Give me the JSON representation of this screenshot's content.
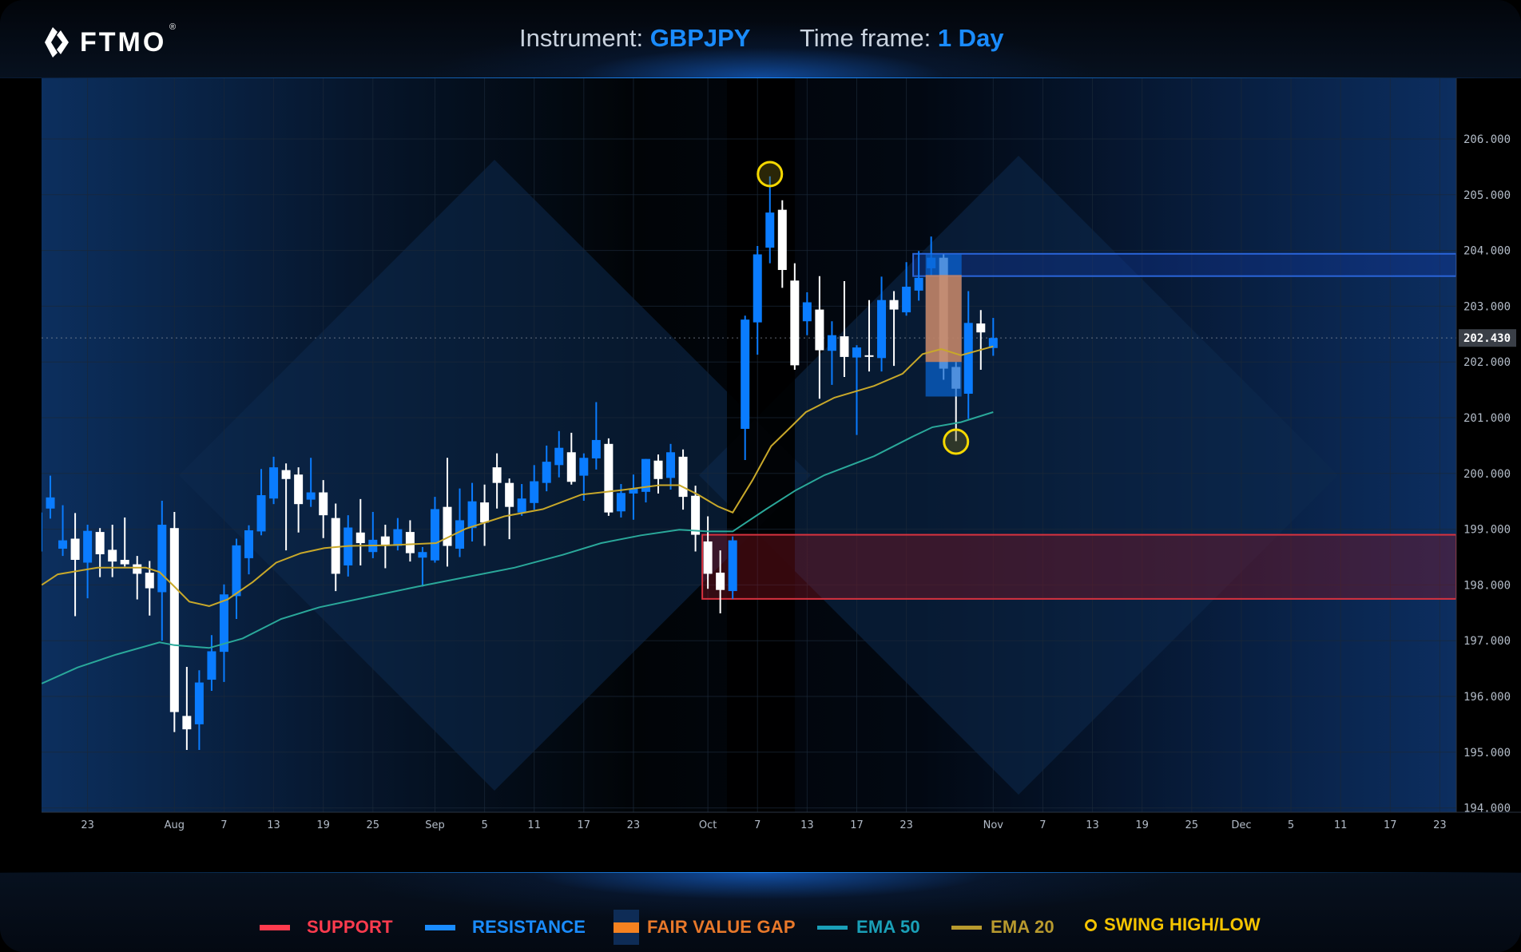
{
  "header": {
    "logo_text": "FTMO",
    "logo_mark": "®",
    "instrument_label": "Instrument:",
    "instrument_value": "GBPJPY",
    "timeframe_label": "Time frame:",
    "timeframe_value": "1 Day"
  },
  "colors": {
    "accent": "#1a8cff",
    "bullish_candle": "#0a7cff",
    "bearish_candle": "#ffffff",
    "support": "#ff3b4e",
    "resistance": "#1a8cff",
    "fair_value_gap": "#f58220",
    "ema50": "#1aa0b8",
    "ema20": "#b89a2e",
    "swing": "#f5c400"
  },
  "legend": [
    {
      "label": "SUPPORT",
      "icon": "red-line-swatch"
    },
    {
      "label": "RESISTANCE",
      "icon": "blue-line-swatch"
    },
    {
      "label": "FAIR VALUE GAP",
      "icon": "orange-block-swatch"
    },
    {
      "label": "EMA 50",
      "icon": "teal-line-swatch"
    },
    {
      "label": "EMA 20",
      "icon": "gold-line-swatch"
    },
    {
      "label": "SWING HIGH/LOW",
      "icon": "yellow-circle-icon"
    }
  ],
  "chart_data": {
    "type": "candlestick",
    "instrument": "GBPJPY",
    "timeframe": "1 Day",
    "ylim": [
      194,
      206
    ],
    "y_ticks": [
      "194.000",
      "195.000",
      "196.000",
      "197.000",
      "198.000",
      "199.000",
      "200.000",
      "201.000",
      "202.000",
      "203.000",
      "204.000",
      "205.000",
      "206.000"
    ],
    "current_price": "202.430",
    "x_ticks": [
      {
        "bar": 4,
        "label": "23"
      },
      {
        "bar": 11,
        "label": "Aug"
      },
      {
        "bar": 15,
        "label": "7"
      },
      {
        "bar": 19,
        "label": "13"
      },
      {
        "bar": 23,
        "label": "19"
      },
      {
        "bar": 27,
        "label": "25"
      },
      {
        "bar": 32,
        "label": "Sep"
      },
      {
        "bar": 36,
        "label": "5"
      },
      {
        "bar": 40,
        "label": "11"
      },
      {
        "bar": 44,
        "label": "17"
      },
      {
        "bar": 48,
        "label": "23"
      },
      {
        "bar": 54,
        "label": "Oct"
      },
      {
        "bar": 58,
        "label": "7"
      },
      {
        "bar": 62,
        "label": "13"
      },
      {
        "bar": 66,
        "label": "17"
      },
      {
        "bar": 70,
        "label": "23"
      },
      {
        "bar": 77,
        "label": "Nov"
      },
      {
        "bar": 81,
        "label": "7"
      },
      {
        "bar": 85,
        "label": "13"
      },
      {
        "bar": 89,
        "label": "19"
      },
      {
        "bar": 93,
        "label": "25"
      },
      {
        "bar": 97,
        "label": "Dec"
      },
      {
        "bar": 101,
        "label": "5"
      },
      {
        "bar": 105,
        "label": "11"
      },
      {
        "bar": 109,
        "label": "17"
      },
      {
        "bar": 113,
        "label": "23"
      }
    ],
    "candle_fields": [
      "open",
      "high",
      "low",
      "close"
    ],
    "candles": [
      [
        198.6,
        199.41,
        198.49,
        199.3
      ],
      [
        199.37,
        199.96,
        199.19,
        199.57
      ],
      [
        198.65,
        199.43,
        198.52,
        198.8
      ],
      [
        198.83,
        199.29,
        197.44,
        198.45
      ],
      [
        198.4,
        199.08,
        197.76,
        198.97
      ],
      [
        198.95,
        199.02,
        198.14,
        198.55
      ],
      [
        198.63,
        199.08,
        198.14,
        198.42
      ],
      [
        198.45,
        199.21,
        198.33,
        198.37
      ],
      [
        198.37,
        198.52,
        197.74,
        198.2
      ],
      [
        198.22,
        198.43,
        197.45,
        197.94
      ],
      [
        197.87,
        199.51,
        197.0,
        199.08
      ],
      [
        199.02,
        199.31,
        195.36,
        195.72
      ],
      [
        195.65,
        196.53,
        195.04,
        195.41
      ],
      [
        195.5,
        196.47,
        195.04,
        196.25
      ],
      [
        196.3,
        197.1,
        196.1,
        196.81
      ],
      [
        196.8,
        198.01,
        196.26,
        197.83
      ],
      [
        197.8,
        198.83,
        197.39,
        198.71
      ],
      [
        198.48,
        199.07,
        198.19,
        198.98
      ],
      [
        198.96,
        200.08,
        198.89,
        199.61
      ],
      [
        199.55,
        200.3,
        199.45,
        200.11
      ],
      [
        200.06,
        200.18,
        198.62,
        199.9
      ],
      [
        199.98,
        200.11,
        198.94,
        199.45
      ],
      [
        199.53,
        200.28,
        199.4,
        199.66
      ],
      [
        199.66,
        199.88,
        198.84,
        199.25
      ],
      [
        199.2,
        199.46,
        197.89,
        198.2
      ],
      [
        198.35,
        199.25,
        198.15,
        199.03
      ],
      [
        198.94,
        199.54,
        198.35,
        198.75
      ],
      [
        198.59,
        199.31,
        198.48,
        198.81
      ],
      [
        198.87,
        199.08,
        198.3,
        198.7
      ],
      [
        198.7,
        199.2,
        198.62,
        199.0
      ],
      [
        198.95,
        199.16,
        198.42,
        198.57
      ],
      [
        198.49,
        198.68,
        197.97,
        198.59
      ],
      [
        198.44,
        199.58,
        198.4,
        199.36
      ],
      [
        199.4,
        200.28,
        198.33,
        198.7
      ],
      [
        198.65,
        199.73,
        198.5,
        199.16
      ],
      [
        199.02,
        199.83,
        198.78,
        199.5
      ],
      [
        199.48,
        199.8,
        198.7,
        199.12
      ],
      [
        200.11,
        200.36,
        199.37,
        199.83
      ],
      [
        199.83,
        199.91,
        198.82,
        199.4
      ],
      [
        199.3,
        199.81,
        199.24,
        199.55
      ],
      [
        199.47,
        200.15,
        199.35,
        199.86
      ],
      [
        199.83,
        200.5,
        199.68,
        200.21
      ],
      [
        200.15,
        200.76,
        199.93,
        200.46
      ],
      [
        200.38,
        200.73,
        199.8,
        199.85
      ],
      [
        199.96,
        200.36,
        199.51,
        200.28
      ],
      [
        200.27,
        201.28,
        200.07,
        200.6
      ],
      [
        200.53,
        200.63,
        199.24,
        199.3
      ],
      [
        199.32,
        199.81,
        199.21,
        199.65
      ],
      [
        199.64,
        199.98,
        199.17,
        199.73
      ],
      [
        199.67,
        200.26,
        199.48,
        200.26
      ],
      [
        200.23,
        200.34,
        199.64,
        199.9
      ],
      [
        199.92,
        200.53,
        199.71,
        200.38
      ],
      [
        200.3,
        200.43,
        199.35,
        199.58
      ],
      [
        199.6,
        199.78,
        198.6,
        198.9
      ],
      [
        198.78,
        199.23,
        197.93,
        198.2
      ],
      [
        198.22,
        198.62,
        197.49,
        197.91
      ],
      [
        197.89,
        198.87,
        197.75,
        198.8
      ],
      [
        200.8,
        202.83,
        200.24,
        202.76
      ],
      [
        202.71,
        204.08,
        202.13,
        203.93
      ],
      [
        204.05,
        205.33,
        203.77,
        204.68
      ],
      [
        204.73,
        204.9,
        203.33,
        203.65
      ],
      [
        203.46,
        203.77,
        201.86,
        201.94
      ],
      [
        202.73,
        203.25,
        202.48,
        203.07
      ],
      [
        202.94,
        203.54,
        201.34,
        202.21
      ],
      [
        202.2,
        202.73,
        201.59,
        202.48
      ],
      [
        202.46,
        203.45,
        201.73,
        202.09
      ],
      [
        202.08,
        202.3,
        200.69,
        202.26
      ],
      [
        202.12,
        203.11,
        201.83,
        202.1
      ],
      [
        202.07,
        203.53,
        201.83,
        203.11
      ],
      [
        203.11,
        203.27,
        201.93,
        202.94
      ],
      [
        202.89,
        203.79,
        202.83,
        203.35
      ],
      [
        203.28,
        203.99,
        203.1,
        203.51
      ],
      [
        203.68,
        204.25,
        203.55,
        203.87
      ],
      [
        203.87,
        203.93,
        201.68,
        201.88
      ],
      [
        201.91,
        202.0,
        200.58,
        201.52
      ],
      [
        201.43,
        203.27,
        200.98,
        202.7
      ],
      [
        202.69,
        202.93,
        201.86,
        202.53
      ],
      [
        202.25,
        202.79,
        202.11,
        202.43
      ]
    ],
    "ema20": [
      [
        0.3,
        198.0
      ],
      [
        1.6,
        198.19
      ],
      [
        4.8,
        198.31
      ],
      [
        8.7,
        198.31
      ],
      [
        9.8,
        198.23
      ],
      [
        11.0,
        197.97
      ],
      [
        12.2,
        197.7
      ],
      [
        13.8,
        197.62
      ],
      [
        15.3,
        197.74
      ],
      [
        17.3,
        198.05
      ],
      [
        19.2,
        198.4
      ],
      [
        21.2,
        198.57
      ],
      [
        23.1,
        198.66
      ],
      [
        25.1,
        198.7
      ],
      [
        28.2,
        198.71
      ],
      [
        32.1,
        198.75
      ],
      [
        34.5,
        199.01
      ],
      [
        37.6,
        199.23
      ],
      [
        40.7,
        199.36
      ],
      [
        43.8,
        199.62
      ],
      [
        47.0,
        199.7
      ],
      [
        50.1,
        199.79
      ],
      [
        51.7,
        199.79
      ],
      [
        53.2,
        199.62
      ],
      [
        54.8,
        199.41
      ],
      [
        56.0,
        199.3
      ],
      [
        57.6,
        199.88
      ],
      [
        59.1,
        200.49
      ],
      [
        60.3,
        200.75
      ],
      [
        61.9,
        201.1
      ],
      [
        64.2,
        201.36
      ],
      [
        67.4,
        201.57
      ],
      [
        69.7,
        201.79
      ],
      [
        71.3,
        202.14
      ],
      [
        72.8,
        202.23
      ],
      [
        74.4,
        202.12
      ],
      [
        77.0,
        202.28
      ]
    ],
    "ema50": [
      [
        0.3,
        196.23
      ],
      [
        3.2,
        196.52
      ],
      [
        6.3,
        196.75
      ],
      [
        9.8,
        196.97
      ],
      [
        11.0,
        196.92
      ],
      [
        13.8,
        196.87
      ],
      [
        16.5,
        197.04
      ],
      [
        19.6,
        197.39
      ],
      [
        22.7,
        197.6
      ],
      [
        26.7,
        197.79
      ],
      [
        30.6,
        197.97
      ],
      [
        34.5,
        198.14
      ],
      [
        38.4,
        198.31
      ],
      [
        42.3,
        198.54
      ],
      [
        45.4,
        198.75
      ],
      [
        48.6,
        198.89
      ],
      [
        51.7,
        198.99
      ],
      [
        54.0,
        198.96
      ],
      [
        56.0,
        198.96
      ],
      [
        58.7,
        199.36
      ],
      [
        61.1,
        199.7
      ],
      [
        63.4,
        199.97
      ],
      [
        67.4,
        200.31
      ],
      [
        70.5,
        200.66
      ],
      [
        72.1,
        200.83
      ],
      [
        74.4,
        200.92
      ],
      [
        77.0,
        201.1
      ]
    ],
    "support_zone": {
      "from_bar": 54,
      "top": 198.9,
      "bottom": 197.75
    },
    "resistance_zone": {
      "from_bar": 71,
      "top": 203.94,
      "bottom": 203.54
    },
    "fair_value_gap": {
      "from_bar": 72,
      "to_bar": 74,
      "outer_top": 203.93,
      "outer_bottom": 201.38,
      "gap_top": 203.56,
      "gap_bottom": 202.0
    },
    "swing_points": [
      {
        "bar": 59,
        "price": 205.37,
        "kind": "high"
      },
      {
        "bar": 74,
        "price": 200.57,
        "kind": "low"
      }
    ]
  }
}
